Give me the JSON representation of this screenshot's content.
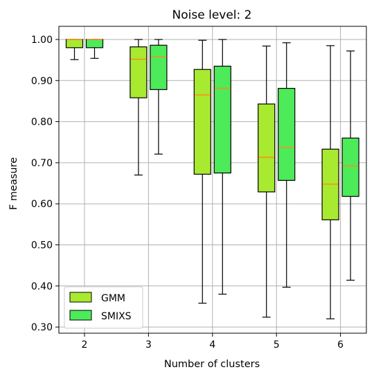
{
  "chart_data": {
    "type": "box",
    "title": "Noise level: 2",
    "xlabel": "Number of clusters",
    "ylabel": "F measure",
    "categories": [
      "2",
      "3",
      "4",
      "5",
      "6"
    ],
    "ylim": [
      0.285,
      1.032
    ],
    "yticks": [
      1.0,
      0.9,
      0.8,
      0.7,
      0.6,
      0.5,
      0.4,
      0.3
    ],
    "ytick_labels": [
      "1.00",
      "0.90",
      "0.80",
      "0.70",
      "0.60",
      "0.50",
      "0.40",
      "0.30"
    ],
    "grid": true,
    "legend_position": "lower-left",
    "median_color": "#ff8c1a",
    "series": [
      {
        "name": "GMM",
        "color": "#a8ea30",
        "boxes": [
          {
            "whislo": 0.951,
            "q1": 0.98,
            "med": 1.0,
            "q3": 1.0,
            "whishi": 1.0
          },
          {
            "whislo": 0.67,
            "q1": 0.858,
            "med": 0.952,
            "q3": 0.982,
            "whishi": 1.0
          },
          {
            "whislo": 0.358,
            "q1": 0.672,
            "med": 0.865,
            "q3": 0.927,
            "whishi": 0.998
          },
          {
            "whislo": 0.324,
            "q1": 0.629,
            "med": 0.713,
            "q3": 0.843,
            "whishi": 0.984
          },
          {
            "whislo": 0.32,
            "q1": 0.561,
            "med": 0.648,
            "q3": 0.733,
            "whishi": 0.985
          }
        ]
      },
      {
        "name": "SMIXS",
        "color": "#4dea5a",
        "boxes": [
          {
            "whislo": 0.954,
            "q1": 0.98,
            "med": 1.0,
            "q3": 1.0,
            "whishi": 1.0
          },
          {
            "whislo": 0.721,
            "q1": 0.878,
            "med": 0.958,
            "q3": 0.986,
            "whishi": 1.0
          },
          {
            "whislo": 0.38,
            "q1": 0.675,
            "med": 0.881,
            "q3": 0.935,
            "whishi": 1.0
          },
          {
            "whislo": 0.397,
            "q1": 0.657,
            "med": 0.737,
            "q3": 0.881,
            "whishi": 0.992
          },
          {
            "whislo": 0.414,
            "q1": 0.618,
            "med": 0.692,
            "q3": 0.76,
            "whishi": 0.972
          }
        ]
      }
    ]
  }
}
